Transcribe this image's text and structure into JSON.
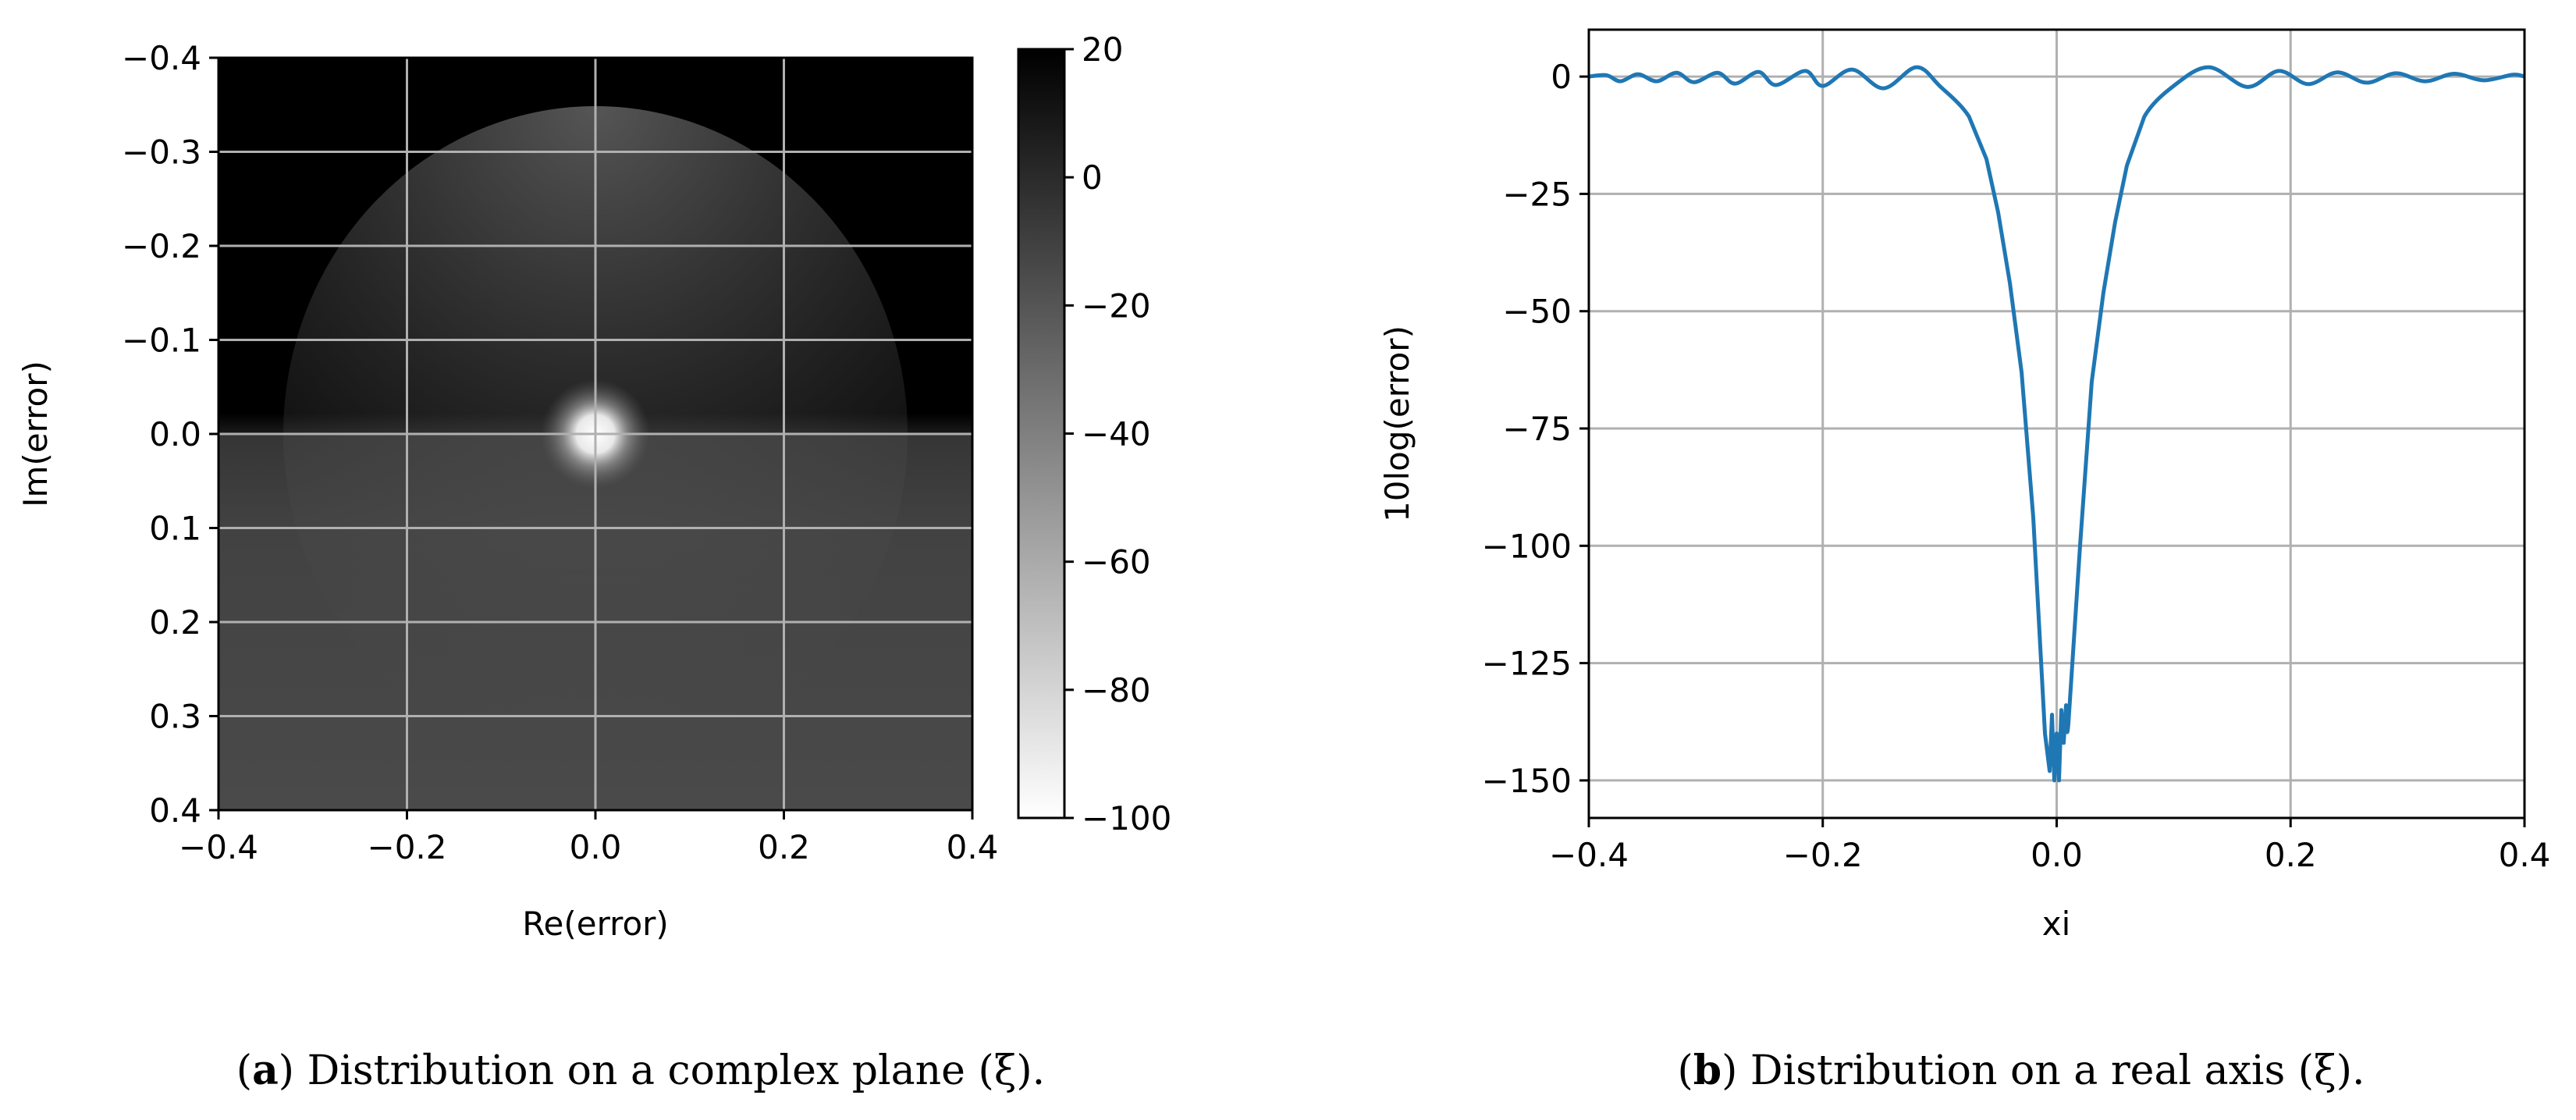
{
  "chart_data": [
    {
      "type": "heatmap",
      "xlabel": "Re(error)",
      "ylabel": "Im(error)",
      "xlim": [
        -0.4,
        0.4
      ],
      "ylim": [
        -0.4,
        0.4
      ],
      "y_inverted": true,
      "xticks": [
        "−0.4",
        "−0.2",
        "0.0",
        "0.2",
        "0.4"
      ],
      "yticks": [
        "−0.4",
        "−0.3",
        "−0.2",
        "−0.1",
        "0.0",
        "0.1",
        "0.2",
        "0.3",
        "0.4"
      ],
      "grid": true,
      "colormap": "gray_r",
      "colorbar": {
        "range": [
          -100,
          20
        ],
        "ticks": [
          "20",
          "0",
          "−20",
          "−40",
          "−60",
          "−80",
          "−100"
        ]
      },
      "description_values": {
        "upper_half_value": 20,
        "lower_half_value": -25,
        "minimum_at": [
          0,
          0
        ],
        "minimum_value": -100
      },
      "caption_label": "a",
      "caption": ") Distribution on a complex plane (ξ)."
    },
    {
      "type": "line",
      "xlabel": "xi",
      "ylabel": "10log(error)",
      "xlim": [
        -0.4,
        0.4
      ],
      "ylim": [
        -158,
        10
      ],
      "xticks": [
        "−0.4",
        "−0.2",
        "0.0",
        "0.2",
        "0.4"
      ],
      "yticks": [
        "0",
        "−25",
        "−50",
        "−75",
        "−100",
        "−125",
        "−150"
      ],
      "grid": true,
      "series": [
        {
          "color": "#1f77b4",
          "x": [
            -0.4,
            -0.385,
            -0.373,
            -0.358,
            -0.342,
            -0.325,
            -0.31,
            -0.29,
            -0.275,
            -0.255,
            -0.24,
            -0.215,
            -0.2,
            -0.175,
            -0.148,
            -0.12,
            -0.1,
            -0.075,
            -0.06,
            -0.05,
            -0.04,
            -0.03,
            -0.02,
            -0.01,
            -0.006,
            -0.004,
            -0.002,
            0.0,
            0.002,
            0.004,
            0.006,
            0.008,
            0.01,
            0.02,
            0.03,
            0.04,
            0.05,
            0.06,
            0.075,
            0.1,
            0.13,
            0.163,
            0.19,
            0.215,
            0.24,
            0.265,
            0.29,
            0.315,
            0.34,
            0.365,
            0.39,
            0.4
          ],
          "y": [
            0,
            0.3,
            -1,
            0.5,
            -1,
            0.8,
            -1.2,
            0.8,
            -1.5,
            1,
            -1.8,
            1.2,
            -2,
            1.5,
            -2.5,
            2,
            -2,
            -8.5,
            -17.6,
            -29,
            -44,
            -63,
            -94,
            -140,
            -148,
            -136,
            -150,
            -140,
            -150,
            -135,
            -142,
            -134,
            -138,
            -100,
            -65,
            -46,
            -31,
            -19,
            -8.5,
            -2,
            2,
            -2.2,
            1.2,
            -1.6,
            0.9,
            -1.3,
            0.7,
            -1,
            0.6,
            -0.8,
            0.4,
            0
          ]
        }
      ],
      "caption_label": "b",
      "caption": ") Distribution on a real axis (ξ)."
    }
  ]
}
